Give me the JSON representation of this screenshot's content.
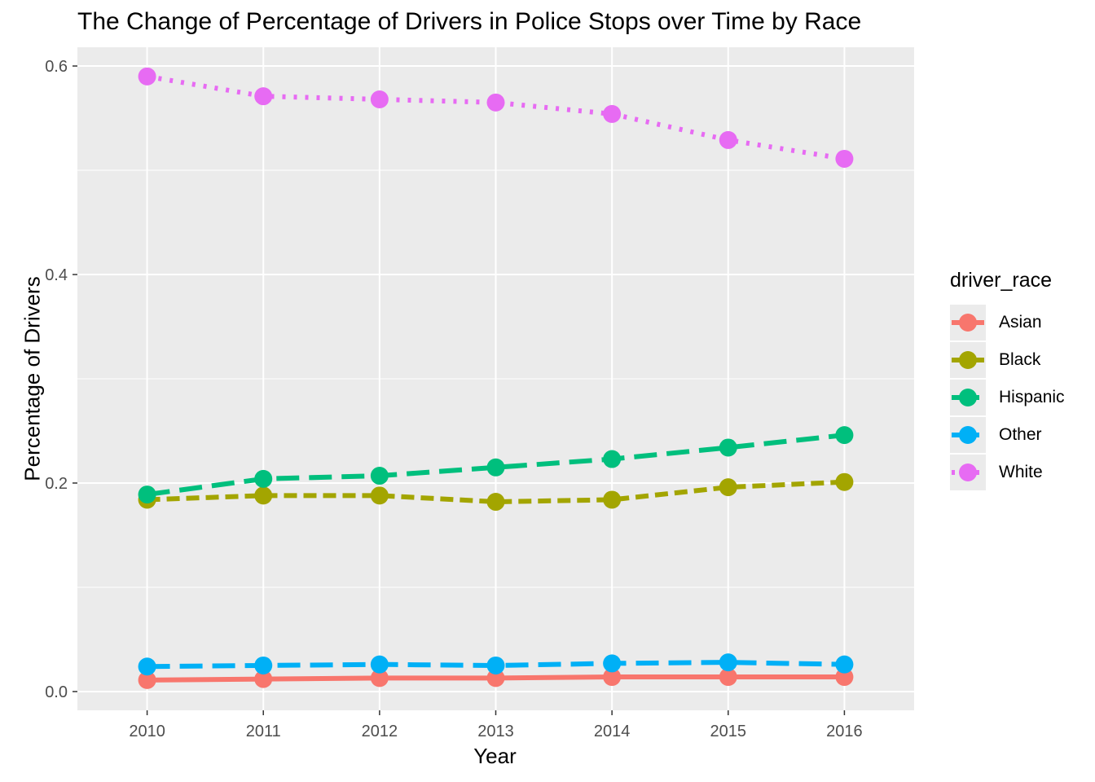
{
  "chart_data": {
    "type": "line",
    "title": "The Change of Percentage of Drivers in Police Stops over Time by Race",
    "xlabel": "Year",
    "ylabel": "Percentage of Drivers",
    "x": [
      "2010",
      "2011",
      "2012",
      "2013",
      "2014",
      "2015",
      "2016"
    ],
    "yticks": [
      "0.0",
      "0.2",
      "0.4",
      "0.6"
    ],
    "ylim": [
      -0.018,
      0.618
    ],
    "grid": true,
    "legend_position": "right",
    "legend_title": "driver_race",
    "series": [
      {
        "name": "Asian",
        "color": "#F8766D",
        "linestyle": "solid",
        "values": [
          0.011,
          0.012,
          0.013,
          0.013,
          0.014,
          0.014,
          0.014
        ]
      },
      {
        "name": "Black",
        "color": "#A3A500",
        "linestyle": "dashed",
        "values": [
          0.184,
          0.188,
          0.188,
          0.182,
          0.184,
          0.196,
          0.201
        ]
      },
      {
        "name": "Hispanic",
        "color": "#00BF7D",
        "linestyle": "longdash",
        "values": [
          0.189,
          0.204,
          0.207,
          0.215,
          0.223,
          0.234,
          0.246
        ]
      },
      {
        "name": "Other",
        "color": "#00B0F6",
        "linestyle": "longdash",
        "values": [
          0.024,
          0.025,
          0.026,
          0.025,
          0.027,
          0.028,
          0.026
        ]
      },
      {
        "name": "White",
        "color": "#E76BF3",
        "linestyle": "dotted",
        "values": [
          0.59,
          0.571,
          0.568,
          0.565,
          0.554,
          0.529,
          0.511
        ]
      }
    ]
  }
}
